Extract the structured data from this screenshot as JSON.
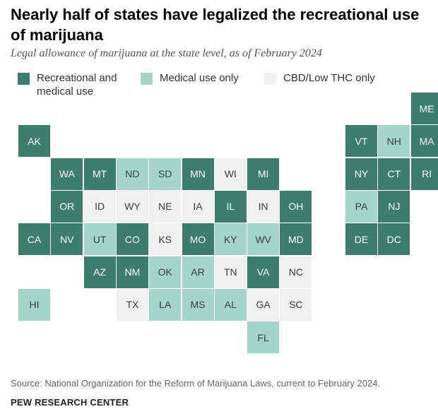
{
  "title": "Nearly half of states have legalized the recreational use of marijuana",
  "subtitle": "Legal allowance of marijuana at the state level, as of February 2024",
  "legend": [
    {
      "label": "Recreational and medical use",
      "category": "rec",
      "color": "#3d7d6b"
    },
    {
      "label": "Medical use only",
      "category": "med",
      "color": "#a5d5c8"
    },
    {
      "label": "CBD/Low THC only",
      "category": "cbd",
      "color": "#f0f0f0"
    }
  ],
  "states": [
    {
      "abbr": "ME",
      "status": "rec"
    },
    {
      "abbr": "AK",
      "status": "rec"
    },
    {
      "abbr": "VT",
      "status": "rec"
    },
    {
      "abbr": "NH",
      "status": "med"
    },
    {
      "abbr": "MA",
      "status": "rec"
    },
    {
      "abbr": "WA",
      "status": "rec"
    },
    {
      "abbr": "MT",
      "status": "rec"
    },
    {
      "abbr": "ND",
      "status": "med"
    },
    {
      "abbr": "SD",
      "status": "med"
    },
    {
      "abbr": "MN",
      "status": "rec"
    },
    {
      "abbr": "WI",
      "status": "cbd"
    },
    {
      "abbr": "MI",
      "status": "rec"
    },
    {
      "abbr": "NY",
      "status": "rec"
    },
    {
      "abbr": "CT",
      "status": "rec"
    },
    {
      "abbr": "RI",
      "status": "rec"
    },
    {
      "abbr": "OR",
      "status": "rec"
    },
    {
      "abbr": "ID",
      "status": "cbd"
    },
    {
      "abbr": "WY",
      "status": "cbd"
    },
    {
      "abbr": "NE",
      "status": "cbd"
    },
    {
      "abbr": "IA",
      "status": "cbd"
    },
    {
      "abbr": "IL",
      "status": "rec"
    },
    {
      "abbr": "IN",
      "status": "cbd"
    },
    {
      "abbr": "OH",
      "status": "rec"
    },
    {
      "abbr": "PA",
      "status": "med"
    },
    {
      "abbr": "NJ",
      "status": "rec"
    },
    {
      "abbr": "CA",
      "status": "rec"
    },
    {
      "abbr": "NV",
      "status": "rec"
    },
    {
      "abbr": "UT",
      "status": "med"
    },
    {
      "abbr": "CO",
      "status": "rec"
    },
    {
      "abbr": "KS",
      "status": "cbd"
    },
    {
      "abbr": "MO",
      "status": "rec"
    },
    {
      "abbr": "KY",
      "status": "med"
    },
    {
      "abbr": "WV",
      "status": "med"
    },
    {
      "abbr": "MD",
      "status": "rec"
    },
    {
      "abbr": "DE",
      "status": "rec"
    },
    {
      "abbr": "DC",
      "status": "rec"
    },
    {
      "abbr": "AZ",
      "status": "rec"
    },
    {
      "abbr": "NM",
      "status": "rec"
    },
    {
      "abbr": "OK",
      "status": "med"
    },
    {
      "abbr": "AR",
      "status": "med"
    },
    {
      "abbr": "TN",
      "status": "cbd"
    },
    {
      "abbr": "VA",
      "status": "rec"
    },
    {
      "abbr": "NC",
      "status": "cbd"
    },
    {
      "abbr": "HI",
      "status": "med"
    },
    {
      "abbr": "TX",
      "status": "cbd"
    },
    {
      "abbr": "LA",
      "status": "med"
    },
    {
      "abbr": "MS",
      "status": "med"
    },
    {
      "abbr": "AL",
      "status": "med"
    },
    {
      "abbr": "GA",
      "status": "cbd"
    },
    {
      "abbr": "SC",
      "status": "cbd"
    },
    {
      "abbr": "FL",
      "status": "med"
    }
  ],
  "source": "Source: National Organization for the Reform of Marijuana Laws, current to February 2024.",
  "organization": "PEW RESEARCH CENTER"
}
